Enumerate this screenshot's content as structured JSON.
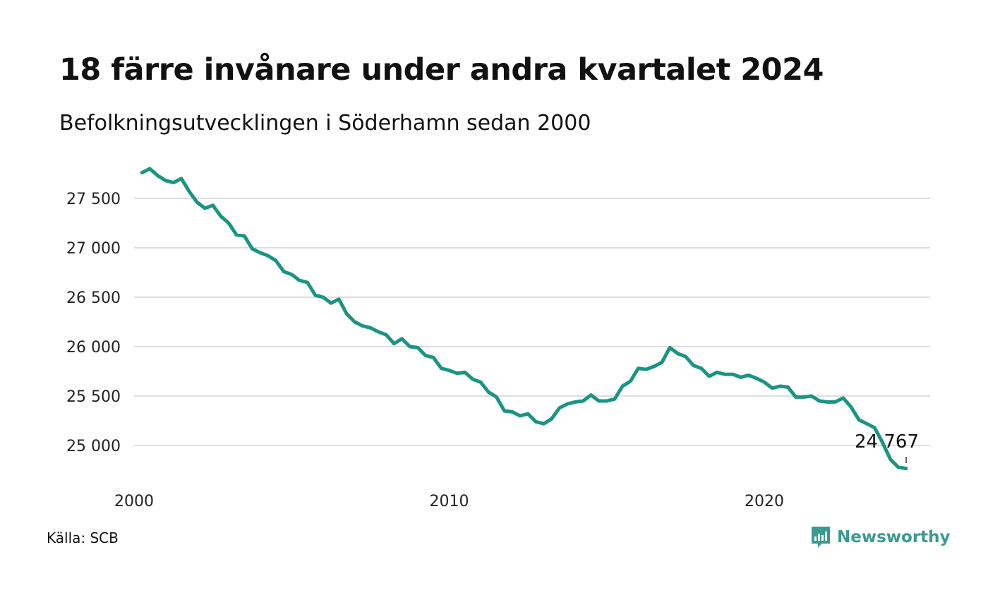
{
  "title": "18 färre invånare under andra kvartalet 2024",
  "subtitle": "Befolkningsutvecklingen i Söderhamn sedan 2000",
  "source": "Källa: SCB",
  "brand": {
    "name": "Newsworthy",
    "icon": "newsworthy-logo-icon",
    "color": "#3a9b8f"
  },
  "colors": {
    "line": "#1b9484",
    "grid": "#dddddd",
    "text": "#111111"
  },
  "chart_data": {
    "type": "line",
    "title": "18 färre invånare under andra kvartalet 2024",
    "subtitle": "Befolkningsutvecklingen i Söderhamn sedan 2000",
    "xlabel": "",
    "ylabel": "",
    "xlim": [
      2000,
      2024.5
    ],
    "ylim": [
      24750,
      27850
    ],
    "x_ticks": [
      2000,
      2010,
      2020
    ],
    "x_tick_labels": [
      "2000",
      "2010",
      "2020"
    ],
    "y_ticks": [
      25000,
      25500,
      26000,
      26500,
      27000,
      27500
    ],
    "y_tick_labels": [
      "25 000",
      "25 500",
      "26 000",
      "26 500",
      "27 000",
      "27 500"
    ],
    "grid": "horizontal",
    "end_label": "24 767",
    "series": [
      {
        "x": [
          2000.25,
          2000.5,
          2000.75,
          2001.0,
          2001.25,
          2001.5,
          2001.75,
          2002.0,
          2002.25,
          2002.5,
          2002.75,
          2003.0,
          2003.25,
          2003.5,
          2003.75,
          2004.0,
          2004.25,
          2004.5,
          2004.75,
          2005.0,
          2005.25,
          2005.5,
          2005.75,
          2006.0,
          2006.25,
          2006.5,
          2006.75,
          2007.0,
          2007.25,
          2007.5,
          2007.75,
          2008.0,
          2008.25,
          2008.5,
          2008.75,
          2009.0,
          2009.25,
          2009.5,
          2009.75,
          2010.0,
          2010.25,
          2010.5,
          2010.75,
          2011.0,
          2011.25,
          2011.5,
          2011.75,
          2012.0,
          2012.25,
          2012.5,
          2012.75,
          2013.0,
          2013.25,
          2013.5,
          2013.75,
          2014.0,
          2014.25,
          2014.5,
          2014.75,
          2015.0,
          2015.25,
          2015.5,
          2015.75,
          2016.0,
          2016.25,
          2016.5,
          2016.75,
          2017.0,
          2017.25,
          2017.5,
          2017.75,
          2018.0,
          2018.25,
          2018.5,
          2018.75,
          2019.0,
          2019.25,
          2019.5,
          2019.75,
          2020.0,
          2020.25,
          2020.5,
          2020.75,
          2021.0,
          2021.25,
          2021.5,
          2021.75,
          2022.0,
          2022.25,
          2022.5,
          2022.75,
          2023.0,
          2023.25,
          2023.5,
          2023.75,
          2024.0,
          2024.25,
          2024.5
        ],
        "values": [
          27760,
          27800,
          27730,
          27680,
          27660,
          27700,
          27570,
          27460,
          27400,
          27430,
          27320,
          27250,
          27130,
          27120,
          26990,
          26950,
          26920,
          26870,
          26760,
          26730,
          26670,
          26650,
          26520,
          26500,
          26440,
          26480,
          26330,
          26250,
          26210,
          26190,
          26150,
          26120,
          26030,
          26080,
          26000,
          25990,
          25910,
          25890,
          25780,
          25760,
          25730,
          25740,
          25670,
          25640,
          25540,
          25490,
          25350,
          25340,
          25300,
          25320,
          25240,
          25220,
          25270,
          25380,
          25420,
          25440,
          25450,
          25510,
          25450,
          25450,
          25470,
          25600,
          25650,
          25780,
          25770,
          25800,
          25840,
          25990,
          25930,
          25900,
          25810,
          25780,
          25700,
          25740,
          25720,
          25720,
          25690,
          25710,
          25680,
          25640,
          25580,
          25600,
          25590,
          25490,
          25490,
          25500,
          25450,
          25440,
          25440,
          25480,
          25390,
          25260,
          25220,
          25180,
          25030,
          24860,
          24780,
          24767
        ]
      }
    ]
  }
}
